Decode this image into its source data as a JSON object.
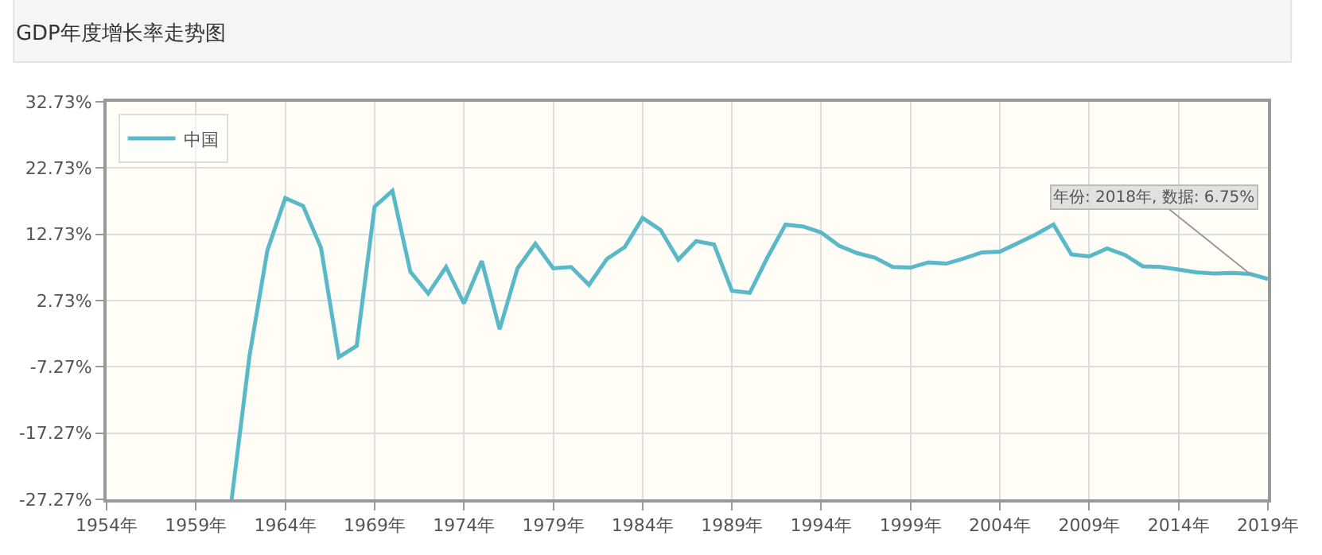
{
  "chart_data": {
    "type": "line",
    "title": "GDP年度增长率走势图",
    "x": [
      1961,
      1962,
      1963,
      1964,
      1965,
      1966,
      1967,
      1968,
      1969,
      1970,
      1971,
      1972,
      1973,
      1974,
      1975,
      1976,
      1977,
      1978,
      1979,
      1980,
      1981,
      1982,
      1983,
      1984,
      1985,
      1986,
      1987,
      1988,
      1989,
      1990,
      1991,
      1992,
      1993,
      1994,
      1995,
      1996,
      1997,
      1998,
      1999,
      2000,
      2001,
      2002,
      2003,
      2004,
      2005,
      2006,
      2007,
      2008,
      2009,
      2010,
      2011,
      2012,
      2013,
      2014,
      2015,
      2016,
      2017,
      2018,
      2019
    ],
    "series": [
      {
        "name": "中国",
        "color": "#5ab9c9",
        "values": [
          -27.27,
          -5.6,
          10.3,
          18.2,
          17.0,
          10.7,
          -5.8,
          -4.1,
          16.9,
          19.3,
          7.1,
          3.8,
          7.8,
          2.3,
          8.7,
          -1.6,
          7.6,
          11.3,
          7.6,
          7.8,
          5.1,
          9.0,
          10.8,
          15.2,
          13.4,
          8.9,
          11.7,
          11.2,
          4.2,
          3.9,
          9.3,
          14.2,
          13.9,
          13.0,
          11.0,
          9.9,
          9.2,
          7.8,
          7.7,
          8.5,
          8.3,
          9.1,
          10.0,
          10.1,
          11.4,
          12.7,
          14.2,
          9.7,
          9.4,
          10.6,
          9.6,
          7.9,
          7.8,
          7.4,
          7.0,
          6.8,
          6.9,
          6.75,
          6.0
        ]
      }
    ],
    "xlim": [
      1954,
      2019
    ],
    "xticks": [
      {
        "value": 1954,
        "label": "1954年"
      },
      {
        "value": 1959,
        "label": "1959年"
      },
      {
        "value": 1964,
        "label": "1964年"
      },
      {
        "value": 1969,
        "label": "1969年"
      },
      {
        "value": 1974,
        "label": "1974年"
      },
      {
        "value": 1979,
        "label": "1979年"
      },
      {
        "value": 1984,
        "label": "1984年"
      },
      {
        "value": 1989,
        "label": "1989年"
      },
      {
        "value": 1994,
        "label": "1994年"
      },
      {
        "value": 1999,
        "label": "1999年"
      },
      {
        "value": 2004,
        "label": "2004年"
      },
      {
        "value": 2009,
        "label": "2009年"
      },
      {
        "value": 2014,
        "label": "2014年"
      },
      {
        "value": 2019,
        "label": "2019年"
      }
    ],
    "ylim": [
      -27.27,
      32.73
    ],
    "yticks": [
      {
        "value": -27.27,
        "label": "-27.27%"
      },
      {
        "value": -17.27,
        "label": "-17.27%"
      },
      {
        "value": -7.27,
        "label": "-7.27%"
      },
      {
        "value": 2.73,
        "label": "2.73%"
      },
      {
        "value": 12.73,
        "label": "12.73%"
      },
      {
        "value": 22.73,
        "label": "22.73%"
      },
      {
        "value": 32.73,
        "label": "32.73%"
      }
    ],
    "annotations": [
      {
        "text": "年份: 2018年, 数据: 6.75%",
        "x": 2018,
        "y": 6.75
      }
    ],
    "grid": true,
    "legend": "top left",
    "marker": "none",
    "line_style": "solid"
  }
}
